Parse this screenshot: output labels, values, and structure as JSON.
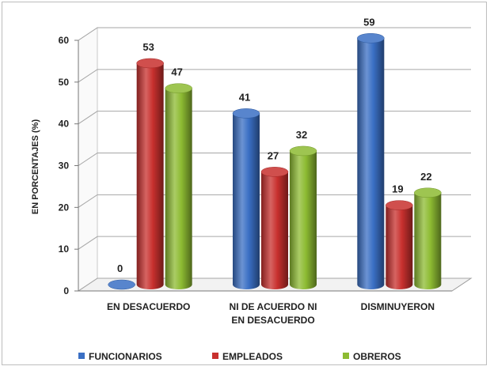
{
  "chart_data": {
    "type": "bar",
    "three_d": true,
    "ylabel": "EN PORCENTAJES (%)",
    "xlabel": "",
    "ylim": [
      0,
      60
    ],
    "yticks": [
      0,
      10,
      20,
      30,
      40,
      50,
      60
    ],
    "grid": true,
    "legend_position": "bottom",
    "categories": [
      [
        "EN DESACUERDO"
      ],
      [
        "NI DE ACUERDO NI",
        "EN DESACUERDO"
      ],
      [
        "DISMINUYERON"
      ]
    ],
    "series": [
      {
        "name": "FUNCIONARIOS",
        "color": "#3a6fc4",
        "values": [
          0,
          41,
          59
        ]
      },
      {
        "name": "EMPLEADOS",
        "color": "#c8302e",
        "values": [
          53,
          27,
          19
        ]
      },
      {
        "name": "OBREROS",
        "color": "#8dbb32",
        "values": [
          47,
          32,
          22
        ]
      }
    ]
  }
}
